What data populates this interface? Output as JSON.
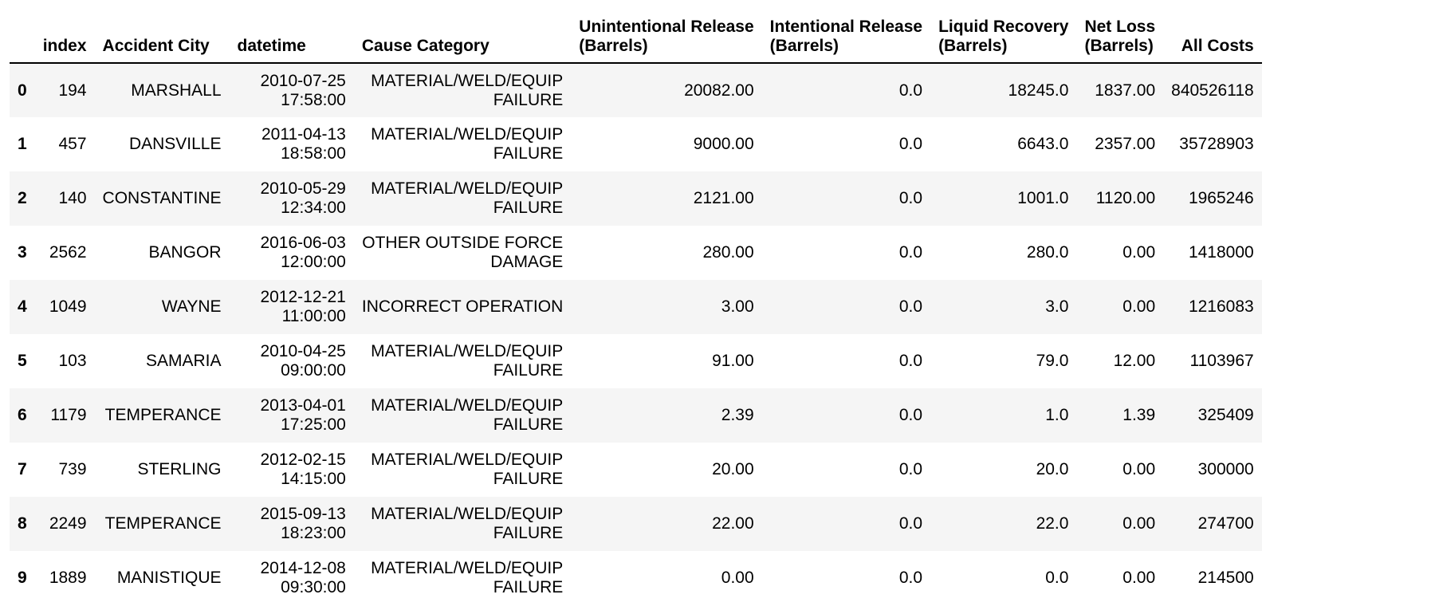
{
  "table": {
    "columns": [
      "index",
      "Accident City",
      "datetime",
      "Cause Category",
      "Unintentional Release (Barrels)",
      "Intentional Release (Barrels)",
      "Liquid Recovery (Barrels)",
      "Net Loss (Barrels)",
      "All Costs"
    ],
    "header": {
      "index": "index",
      "city": "Accident City",
      "datetime": "datetime",
      "cause": "Cause Category",
      "unintentional_l1": "Unintentional Release",
      "unintentional_l2": "(Barrels)",
      "intentional_l1": "Intentional Release",
      "intentional_l2": "(Barrels)",
      "recovery_l1": "Liquid Recovery",
      "recovery_l2": "(Barrels)",
      "netloss_l1": "Net Loss",
      "netloss_l2": "(Barrels)",
      "costs": "All Costs"
    },
    "rows": [
      {
        "row": "0",
        "index": "194",
        "city": "MARSHALL",
        "date": "2010-07-25",
        "time": "17:58:00",
        "cause_l1": "MATERIAL/WELD/EQUIP",
        "cause_l2": "FAILURE",
        "unintentional": "20082.00",
        "intentional": "0.0",
        "recovery": "18245.0",
        "netloss": "1837.00",
        "costs": "840526118"
      },
      {
        "row": "1",
        "index": "457",
        "city": "DANSVILLE",
        "date": "2011-04-13",
        "time": "18:58:00",
        "cause_l1": "MATERIAL/WELD/EQUIP",
        "cause_l2": "FAILURE",
        "unintentional": "9000.00",
        "intentional": "0.0",
        "recovery": "6643.0",
        "netloss": "2357.00",
        "costs": "35728903"
      },
      {
        "row": "2",
        "index": "140",
        "city": "CONSTANTINE",
        "date": "2010-05-29",
        "time": "12:34:00",
        "cause_l1": "MATERIAL/WELD/EQUIP",
        "cause_l2": "FAILURE",
        "unintentional": "2121.00",
        "intentional": "0.0",
        "recovery": "1001.0",
        "netloss": "1120.00",
        "costs": "1965246"
      },
      {
        "row": "3",
        "index": "2562",
        "city": "BANGOR",
        "date": "2016-06-03",
        "time": "12:00:00",
        "cause_l1": "OTHER OUTSIDE FORCE",
        "cause_l2": "DAMAGE",
        "unintentional": "280.00",
        "intentional": "0.0",
        "recovery": "280.0",
        "netloss": "0.00",
        "costs": "1418000"
      },
      {
        "row": "4",
        "index": "1049",
        "city": "WAYNE",
        "date": "2012-12-21",
        "time": "11:00:00",
        "cause_l1": "INCORRECT OPERATION",
        "cause_l2": "",
        "unintentional": "3.00",
        "intentional": "0.0",
        "recovery": "3.0",
        "netloss": "0.00",
        "costs": "1216083"
      },
      {
        "row": "5",
        "index": "103",
        "city": "SAMARIA",
        "date": "2010-04-25",
        "time": "09:00:00",
        "cause_l1": "MATERIAL/WELD/EQUIP",
        "cause_l2": "FAILURE",
        "unintentional": "91.00",
        "intentional": "0.0",
        "recovery": "79.0",
        "netloss": "12.00",
        "costs": "1103967"
      },
      {
        "row": "6",
        "index": "1179",
        "city": "TEMPERANCE",
        "date": "2013-04-01",
        "time": "17:25:00",
        "cause_l1": "MATERIAL/WELD/EQUIP",
        "cause_l2": "FAILURE",
        "unintentional": "2.39",
        "intentional": "0.0",
        "recovery": "1.0",
        "netloss": "1.39",
        "costs": "325409"
      },
      {
        "row": "7",
        "index": "739",
        "city": "STERLING",
        "date": "2012-02-15",
        "time": "14:15:00",
        "cause_l1": "MATERIAL/WELD/EQUIP",
        "cause_l2": "FAILURE",
        "unintentional": "20.00",
        "intentional": "0.0",
        "recovery": "20.0",
        "netloss": "0.00",
        "costs": "300000"
      },
      {
        "row": "8",
        "index": "2249",
        "city": "TEMPERANCE",
        "date": "2015-09-13",
        "time": "18:23:00",
        "cause_l1": "MATERIAL/WELD/EQUIP",
        "cause_l2": "FAILURE",
        "unintentional": "22.00",
        "intentional": "0.0",
        "recovery": "22.0",
        "netloss": "0.00",
        "costs": "274700"
      },
      {
        "row": "9",
        "index": "1889",
        "city": "MANISTIQUE",
        "date": "2014-12-08",
        "time": "09:30:00",
        "cause_l1": "MATERIAL/WELD/EQUIP",
        "cause_l2": "FAILURE",
        "unintentional": "0.00",
        "intentional": "0.0",
        "recovery": "0.0",
        "netloss": "0.00",
        "costs": "214500"
      }
    ]
  }
}
